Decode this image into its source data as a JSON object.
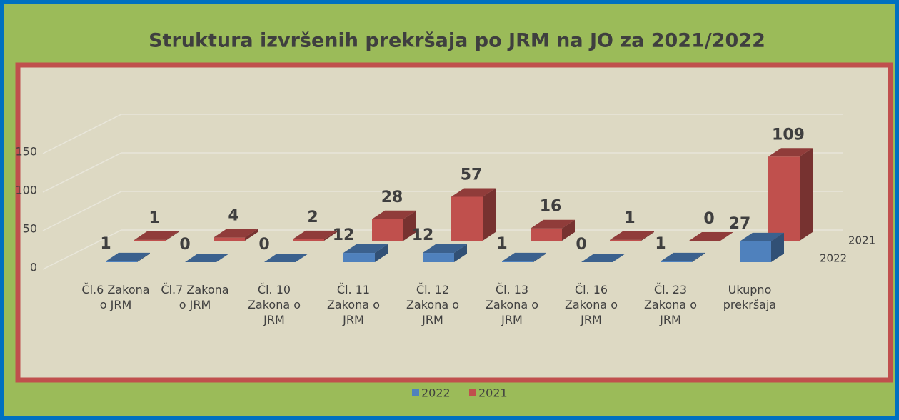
{
  "chart_data": {
    "type": "bar3d",
    "title": "Struktura izvršenih prekršaja po JRM na JO za 2021/2022",
    "categories": [
      "Čl.6 Zakona o JRM",
      "Čl.7 Zakona o JRM",
      "Čl. 10 Zakona o JRM",
      "Čl. 11 Zakona o JRM",
      "Čl. 12 Zakona o JRM",
      "Čl. 13 Zakona o JRM",
      "Čl. 16 Zakona o JRM",
      "Čl. 23 Zakona o JRM",
      "Ukupno prekršaja"
    ],
    "series": [
      {
        "name": "2022",
        "color": "#4f81bd",
        "values": [
          1,
          0,
          0,
          12,
          12,
          1,
          0,
          1,
          27
        ]
      },
      {
        "name": "2021",
        "color": "#c0504d",
        "values": [
          1,
          4,
          2,
          28,
          57,
          16,
          1,
          0,
          109
        ]
      }
    ],
    "ylim": [
      0,
      200
    ],
    "yticks": [
      0,
      50,
      100,
      150
    ],
    "grid": true,
    "legend": "bottom"
  }
}
